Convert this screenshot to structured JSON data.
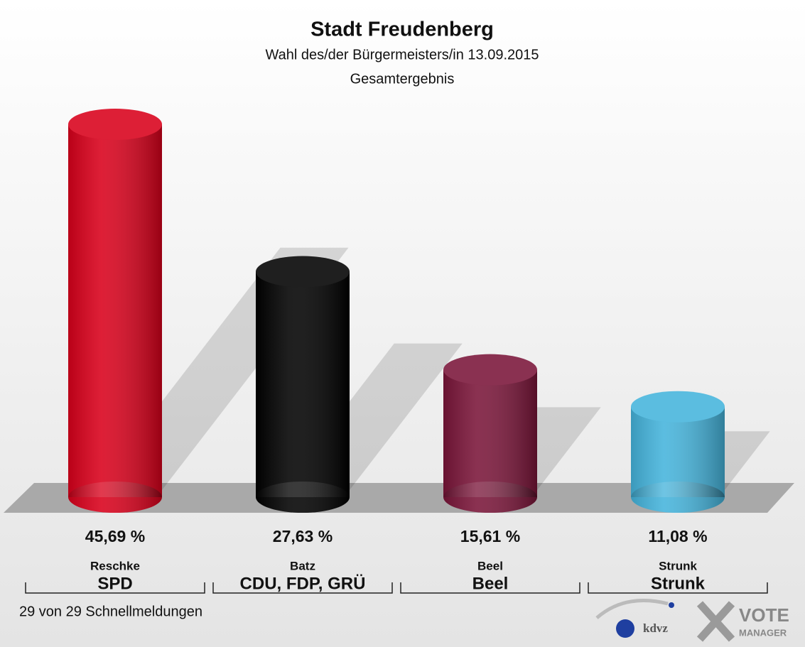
{
  "chart_data": {
    "type": "bar",
    "title": "Stadt Freudenberg",
    "subtitle": "Wahl des/der Bürgermeisters/in 13.09.2015",
    "subtitle2": "Gesamtergebnis",
    "categories": [
      "Reschke",
      "Batz",
      "Beel",
      "Strunk"
    ],
    "parties": [
      "SPD",
      "CDU, FDP, GRÜ",
      "Beel",
      "Strunk"
    ],
    "values": [
      45.69,
      27.63,
      15.61,
      11.08
    ],
    "value_labels": [
      "45,69 %",
      "27,63 %",
      "15,61 %",
      "11,08 %"
    ],
    "colors": [
      "#d9001b",
      "#000000",
      "#7a1539",
      "#45b4dc"
    ],
    "footnote": "29 von 29 Schnellmeldungen"
  },
  "logo": {
    "left": "kdvz",
    "right_top": "VOTE",
    "right_bottom": "MANAGER"
  }
}
